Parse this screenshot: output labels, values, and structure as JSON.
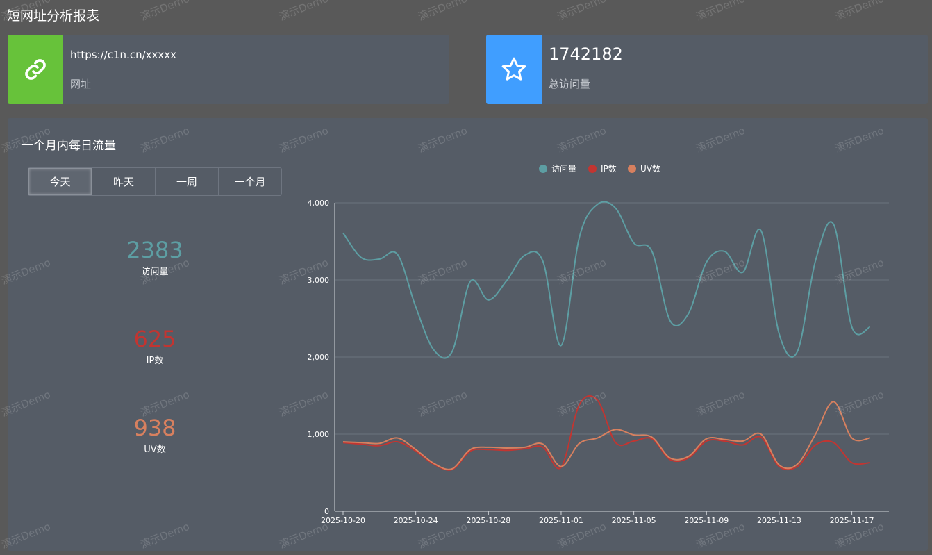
{
  "page": {
    "title": "短网址分析报表"
  },
  "cards": {
    "url": {
      "value": "https://c1n.cn/xxxxx",
      "label": "网址",
      "icon": "link-icon",
      "color": "#67c23a"
    },
    "visits": {
      "value": "1742182",
      "label": "总访问量",
      "icon": "star-icon",
      "color": "#409eff"
    }
  },
  "panel": {
    "title": "一个月内每日流量",
    "tabs": [
      "今天",
      "昨天",
      "一周",
      "一个月"
    ],
    "active_tab": "今天"
  },
  "stats": [
    {
      "value": "2383",
      "label": "访问量",
      "color": "#5d9ea3"
    },
    {
      "value": "625",
      "label": "IP数",
      "color": "#c23531"
    },
    {
      "value": "938",
      "label": "UV数",
      "color": "#d7805f"
    }
  ],
  "watermark": "演示Demo",
  "chart_data": {
    "type": "line",
    "smooth": true,
    "legend_position": "top-center",
    "grid": true,
    "ylim": [
      0,
      4000
    ],
    "yticks": [
      0,
      1000,
      2000,
      3000,
      4000
    ],
    "ytick_labels": [
      "0",
      "1,000",
      "2,000",
      "3,000",
      "4,000"
    ],
    "xtick_labels": [
      "2025-10-20",
      "2025-10-24",
      "2025-10-28",
      "2025-11-01",
      "2025-11-05",
      "2025-11-09",
      "2025-11-13",
      "2025-11-17"
    ],
    "x": [
      "2025-10-20",
      "2025-10-21",
      "2025-10-22",
      "2025-10-23",
      "2025-10-24",
      "2025-10-25",
      "2025-10-26",
      "2025-10-27",
      "2025-10-28",
      "2025-10-29",
      "2025-10-30",
      "2025-10-31",
      "2025-11-01",
      "2025-11-02",
      "2025-11-03",
      "2025-11-04",
      "2025-11-05",
      "2025-11-06",
      "2025-11-07",
      "2025-11-08",
      "2025-11-09",
      "2025-11-10",
      "2025-11-11",
      "2025-11-12",
      "2025-11-13",
      "2025-11-14",
      "2025-11-15",
      "2025-11-16",
      "2025-11-17",
      "2025-11-18"
    ],
    "series": [
      {
        "name": "访问量",
        "color": "#5d9ea3",
        "values": [
          3610,
          3290,
          3270,
          3330,
          2650,
          2090,
          2070,
          2980,
          2740,
          2990,
          3320,
          3240,
          2150,
          3550,
          3980,
          3930,
          3480,
          3370,
          2470,
          2560,
          3230,
          3370,
          3100,
          3640,
          2300,
          2070,
          3250,
          3720,
          2390,
          2390
        ]
      },
      {
        "name": "IP数",
        "color": "#c23531",
        "values": [
          890,
          870,
          850,
          900,
          780,
          610,
          540,
          780,
          800,
          790,
          810,
          830,
          570,
          1380,
          1440,
          890,
          910,
          940,
          670,
          690,
          910,
          910,
          860,
          960,
          580,
          580,
          860,
          890,
          630,
          630
        ]
      },
      {
        "name": "UV数",
        "color": "#d7805f",
        "values": [
          900,
          890,
          880,
          950,
          800,
          620,
          550,
          800,
          830,
          820,
          830,
          870,
          580,
          880,
          950,
          1060,
          990,
          960,
          690,
          710,
          940,
          930,
          910,
          1000,
          600,
          610,
          1000,
          1420,
          950,
          950
        ]
      }
    ]
  }
}
